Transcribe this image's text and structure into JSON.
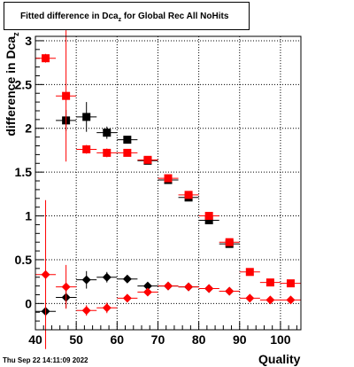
{
  "chart_data": {
    "type": "scatter",
    "title_prefix": "Fitted difference in Dca",
    "title_sub": "z",
    "title_suffix": "  for Global Rec All NoHits",
    "ylabel_prefix": "difference in Dca",
    "ylabel_sub": "z",
    "xlabel": "Quality",
    "datestamp": "Thu Sep 22 14:11:09 2022",
    "xlim": [
      40,
      105
    ],
    "ylim": [
      -0.3,
      3.05
    ],
    "xticks": [
      40,
      50,
      60,
      70,
      80,
      90,
      100
    ],
    "yticks": [
      0,
      0.5,
      1,
      1.5,
      2,
      2.5,
      3
    ],
    "ytick_labels": [
      "0",
      "0.5",
      "1",
      "1.5",
      "2",
      "2.5",
      "3"
    ],
    "grid": true,
    "series": [
      {
        "marker": "square",
        "color": "#000000",
        "points": [
          {
            "x": 47.5,
            "y": 2.09,
            "yerr": 0.12
          },
          {
            "x": 52.5,
            "y": 2.13,
            "yerr": 0.17
          },
          {
            "x": 57.5,
            "y": 1.95,
            "yerr": 0.07
          },
          {
            "x": 62.5,
            "y": 1.87,
            "yerr": 0.04
          },
          {
            "x": 67.5,
            "y": 1.63,
            "yerr": 0.03
          },
          {
            "x": 72.5,
            "y": 1.41,
            "yerr": 0.03
          },
          {
            "x": 77.5,
            "y": 1.21,
            "yerr": 0.02
          },
          {
            "x": 82.5,
            "y": 0.95,
            "yerr": 0.02
          },
          {
            "x": 87.5,
            "y": 0.68,
            "yerr": 0.02
          }
        ]
      },
      {
        "marker": "square",
        "color": "#ff0000",
        "points": [
          {
            "x": 42.5,
            "y": 2.8,
            "yerr": 0.05
          },
          {
            "x": 47.5,
            "y": 2.37,
            "yerr": 0.75
          },
          {
            "x": 52.5,
            "y": 1.76,
            "yerr": 0.05
          },
          {
            "x": 57.5,
            "y": 1.72,
            "yerr": 0.05
          },
          {
            "x": 62.5,
            "y": 1.72,
            "yerr": 0.04
          },
          {
            "x": 67.5,
            "y": 1.64,
            "yerr": 0.03
          },
          {
            "x": 72.5,
            "y": 1.43,
            "yerr": 0.02
          },
          {
            "x": 77.5,
            "y": 1.24,
            "yerr": 0.02
          },
          {
            "x": 82.5,
            "y": 1.0,
            "yerr": 0.02
          },
          {
            "x": 87.5,
            "y": 0.7,
            "yerr": 0.02
          },
          {
            "x": 92.5,
            "y": 0.36,
            "yerr": 0.02
          },
          {
            "x": 97.5,
            "y": 0.24,
            "yerr": 0.02
          },
          {
            "x": 102.5,
            "y": 0.23,
            "yerr": 0.02
          }
        ]
      },
      {
        "marker": "diamond",
        "color": "#000000",
        "points": [
          {
            "x": 42.5,
            "y": -0.09,
            "yerr": 0.06
          },
          {
            "x": 47.5,
            "y": 0.07,
            "yerr": 0.12
          },
          {
            "x": 52.5,
            "y": 0.27,
            "yerr": 0.1
          },
          {
            "x": 57.5,
            "y": 0.3,
            "yerr": 0.06
          },
          {
            "x": 62.5,
            "y": 0.28,
            "yerr": 0.03
          },
          {
            "x": 67.5,
            "y": 0.2,
            "yerr": 0.02
          },
          {
            "x": 72.5,
            "y": 0.2,
            "yerr": 0.02
          },
          {
            "x": 77.5,
            "y": 0.19,
            "yerr": 0.02
          },
          {
            "x": 82.5,
            "y": 0.17,
            "yerr": 0.02
          },
          {
            "x": 87.5,
            "y": 0.14,
            "yerr": 0.02
          }
        ]
      },
      {
        "marker": "diamond",
        "color": "#ff0000",
        "points": [
          {
            "x": 42.5,
            "y": 0.33,
            "yerr": 0.85
          },
          {
            "x": 47.5,
            "y": 0.19,
            "yerr": 0.25
          },
          {
            "x": 52.5,
            "y": -0.08,
            "yerr": 0.06
          },
          {
            "x": 57.5,
            "y": -0.05,
            "yerr": 0.06
          },
          {
            "x": 62.5,
            "y": 0.06,
            "yerr": 0.04
          },
          {
            "x": 67.5,
            "y": 0.13,
            "yerr": 0.03
          },
          {
            "x": 72.5,
            "y": 0.2,
            "yerr": 0.02
          },
          {
            "x": 77.5,
            "y": 0.19,
            "yerr": 0.02
          },
          {
            "x": 82.5,
            "y": 0.17,
            "yerr": 0.02
          },
          {
            "x": 87.5,
            "y": 0.14,
            "yerr": 0.02
          },
          {
            "x": 92.5,
            "y": 0.06,
            "yerr": 0.02
          },
          {
            "x": 97.5,
            "y": 0.04,
            "yerr": 0.02
          },
          {
            "x": 102.5,
            "y": 0.04,
            "yerr": 0.02
          }
        ]
      }
    ]
  }
}
